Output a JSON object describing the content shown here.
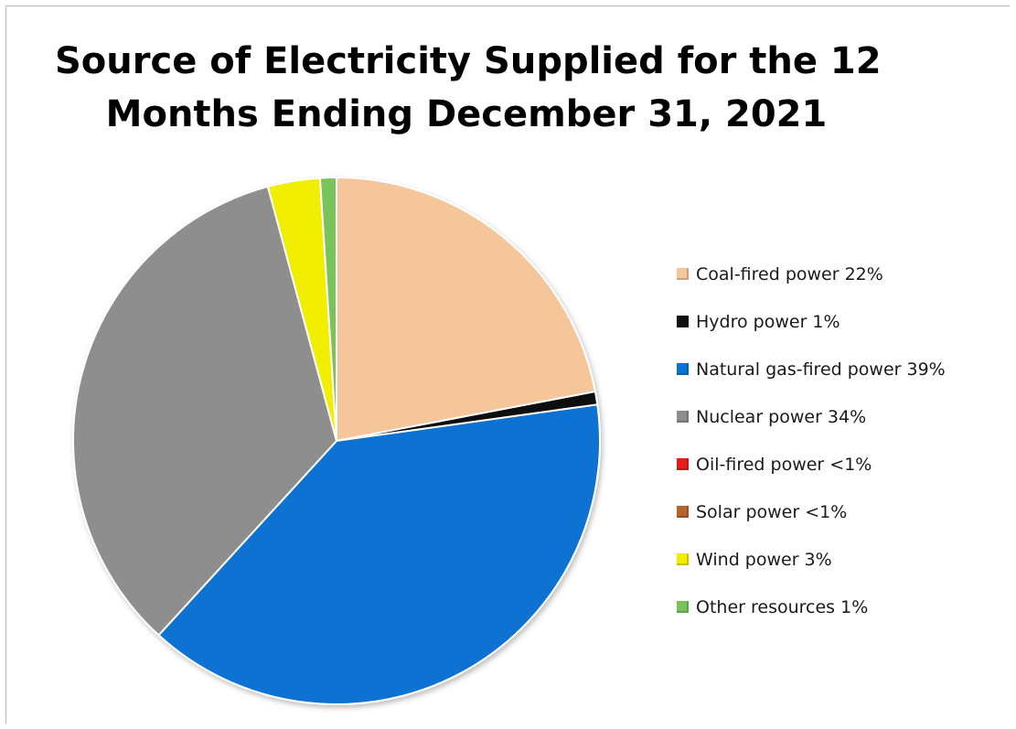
{
  "chart_data": {
    "type": "pie",
    "title_lines": [
      "Source of Electricity Supplied for the 12",
      "Months Ending December 31, 2021"
    ],
    "slices": [
      {
        "label": "Coal-fired power 22%",
        "value": 22,
        "color": "#f5c69a"
      },
      {
        "label": "Hydro power 1%",
        "value": 0.8,
        "color": "#111111"
      },
      {
        "label": "Natural gas-fired power 39%",
        "value": 39,
        "color": "#0a72d1"
      },
      {
        "label": "Nuclear power 34%",
        "value": 34,
        "color": "#8e8e8e"
      },
      {
        "label": "Oil-fired power <1%",
        "value": 0,
        "color": "#e81c1c"
      },
      {
        "label": "Solar power <1%",
        "value": 0,
        "color": "#b5652b"
      },
      {
        "label": "Wind power 3%",
        "value": 3.2,
        "color": "#f2ee00"
      },
      {
        "label": "Other resources 1%",
        "value": 1,
        "color": "#78c45a"
      }
    ],
    "legend_position": "right"
  }
}
